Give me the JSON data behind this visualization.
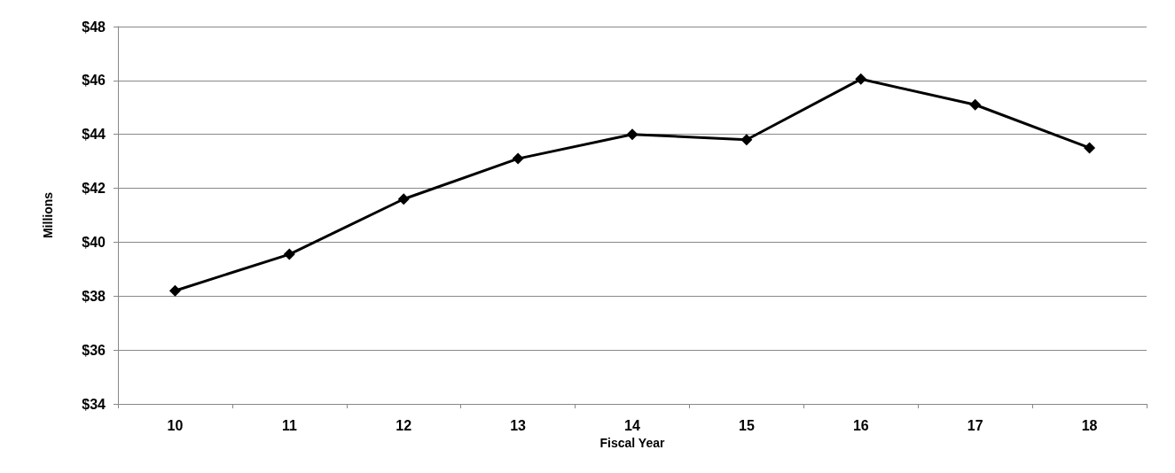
{
  "chart_data": {
    "type": "line",
    "xlabel": "Fiscal Year",
    "ylabel": "Millions",
    "categories": [
      "10",
      "11",
      "12",
      "13",
      "14",
      "15",
      "16",
      "17",
      "18"
    ],
    "series": [
      {
        "color": "#000000",
        "values": [
          38.2,
          39.55,
          41.6,
          43.1,
          44.0,
          43.8,
          46.05,
          45.1,
          43.5
        ]
      }
    ],
    "ylim": [
      34,
      48
    ],
    "yticks": [
      {
        "value": 34,
        "label": "$34"
      },
      {
        "value": 36,
        "label": "$36"
      },
      {
        "value": 38,
        "label": "$38"
      },
      {
        "value": 40,
        "label": "$40"
      },
      {
        "value": 42,
        "label": "$42"
      },
      {
        "value": 44,
        "label": "$44"
      },
      {
        "value": 46,
        "label": "$46"
      },
      {
        "value": 48,
        "label": "$48"
      }
    ],
    "grid": "y",
    "marker": "diamond",
    "line_style": "solid"
  }
}
